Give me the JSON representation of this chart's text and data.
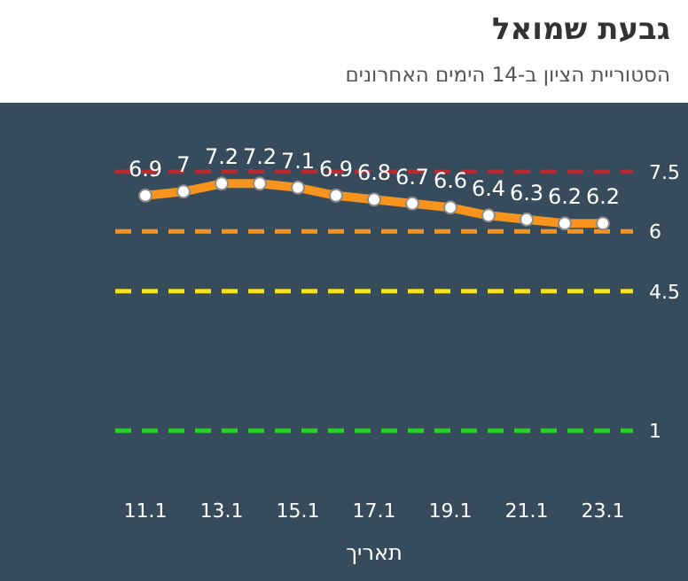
{
  "chart_data": {
    "type": "line",
    "title": "גבעת שמואל",
    "subtitle": "הסטוריית הציון ב-14 הימים האחרונים",
    "xlabel": "תאריך",
    "categories": [
      "11.1",
      null,
      "13.1",
      null,
      "15.1",
      null,
      "17.1",
      null,
      "19.1",
      null,
      "21.1",
      null,
      "23.1"
    ],
    "series": [
      {
        "color": "#f7941d",
        "values": [
          6.9,
          7,
          7.2,
          7.2,
          7.1,
          6.9,
          6.8,
          6.7,
          6.6,
          6.4,
          6.3,
          6.2,
          6.2
        ]
      }
    ],
    "data_labels": true,
    "marker": "circle",
    "line_style": "solid",
    "tick_labels": "x",
    "ref_lines": [
      {
        "axis": "y",
        "value": 7.5,
        "label": "7.5",
        "color": "#c0272d",
        "line_style": "dashed"
      },
      {
        "axis": "y",
        "value": 6,
        "label": "6",
        "color": "#f7941d",
        "line_style": "dashed"
      },
      {
        "axis": "y",
        "value": 4.5,
        "label": "4.5",
        "color": "#f5e11a",
        "line_style": "dashed"
      },
      {
        "axis": "y",
        "value": 1,
        "label": "1",
        "color": "#2bd12b",
        "line_style": "dashed"
      }
    ]
  }
}
